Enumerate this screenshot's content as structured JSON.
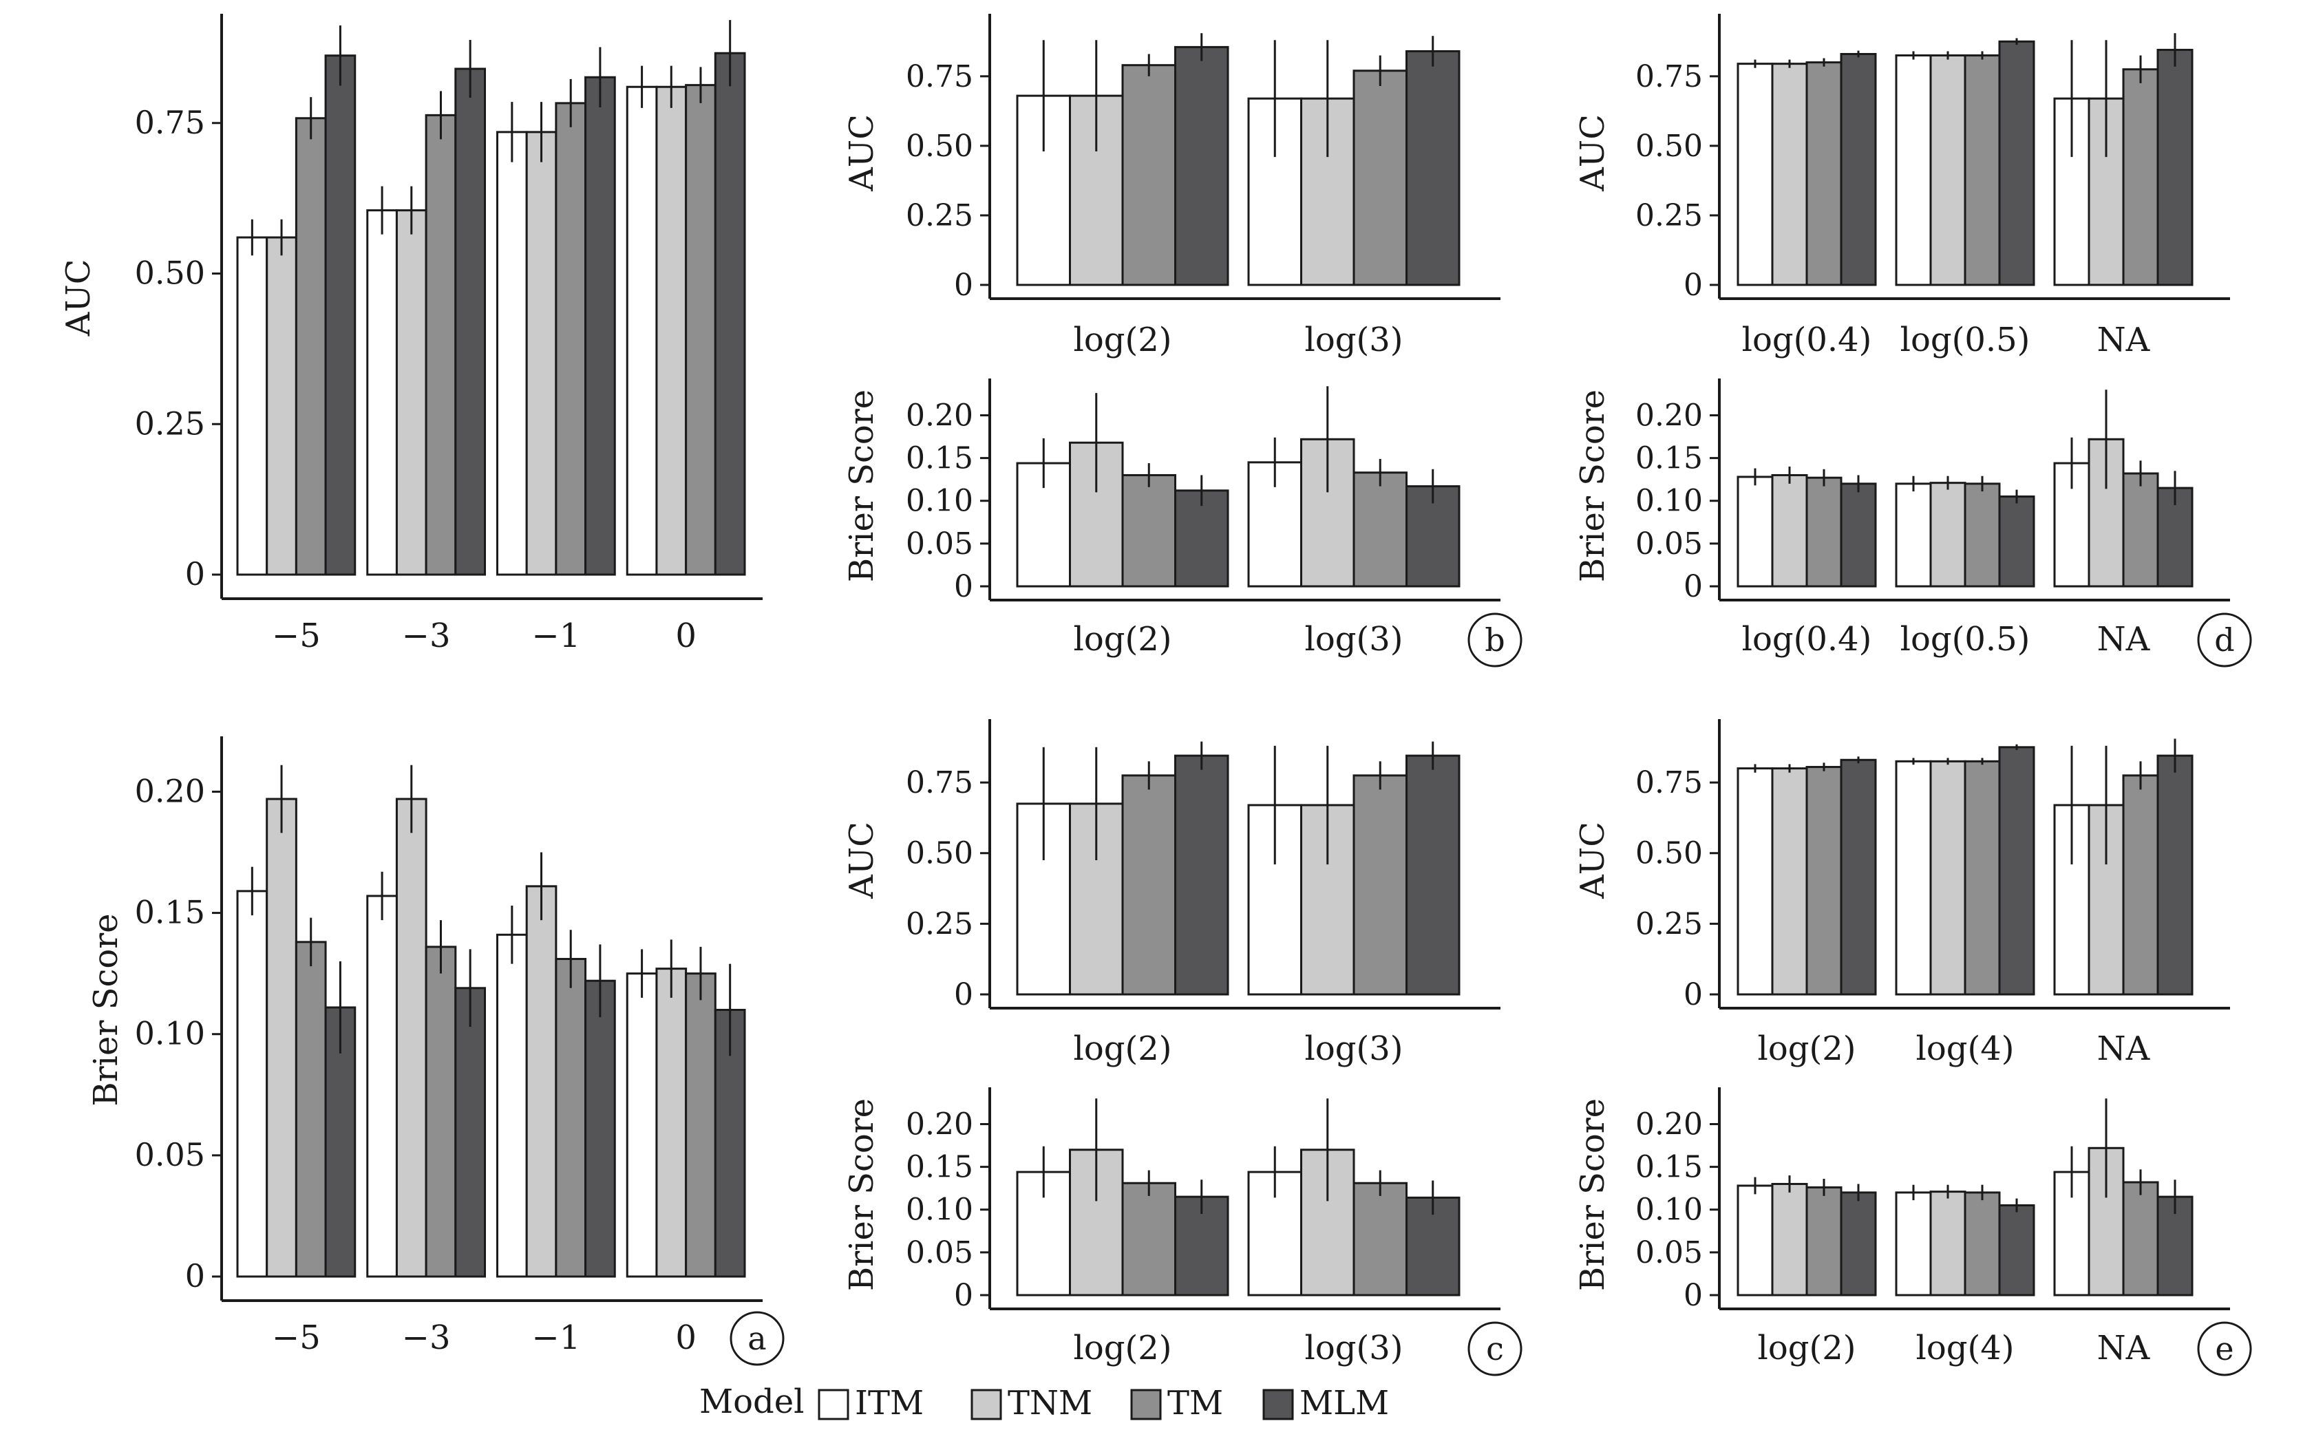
{
  "colors": {
    "ITM": "#ffffff",
    "TNM": "#cbcbcb",
    "TM": "#8f8f8f",
    "MLM": "#555456",
    "stroke": "#1a1a1a"
  },
  "series_order": [
    "ITM",
    "TNM",
    "TM",
    "MLM"
  ],
  "legend": {
    "title": "Model",
    "items": [
      "ITM",
      "TNM",
      "TM",
      "MLM"
    ]
  },
  "chart_data": [
    {
      "id": "a-top",
      "type": "bar",
      "ylabel": "AUC",
      "ylim": [
        0,
        0.92
      ],
      "yticks": [
        0,
        0.25,
        0.5,
        0.75
      ],
      "ytick_labels": [
        "0",
        "0.25",
        "0.50",
        "0.75"
      ],
      "categories": [
        "−5",
        "−3",
        "−1",
        "0"
      ],
      "series": [
        {
          "name": "ITM",
          "values": [
            0.56,
            0.605,
            0.735,
            0.81
          ],
          "err": [
            0.03,
            0.04,
            0.05,
            0.035
          ]
        },
        {
          "name": "TNM",
          "values": [
            0.56,
            0.605,
            0.735,
            0.81
          ],
          "err": [
            0.03,
            0.04,
            0.05,
            0.035
          ]
        },
        {
          "name": "TM",
          "values": [
            0.758,
            0.763,
            0.783,
            0.813
          ],
          "err": [
            0.035,
            0.04,
            0.04,
            0.03
          ]
        },
        {
          "name": "MLM",
          "values": [
            0.862,
            0.84,
            0.826,
            0.866
          ],
          "err": [
            0.05,
            0.048,
            0.05,
            0.055
          ]
        }
      ]
    },
    {
      "id": "a-bottom",
      "type": "bar",
      "ylabel": "Brier  Score",
      "ylim": [
        0,
        0.22
      ],
      "yticks": [
        0,
        0.05,
        0.1,
        0.15,
        0.2
      ],
      "ytick_labels": [
        "0",
        "0.05",
        "0.10",
        "0.15",
        "0.20"
      ],
      "categories": [
        "−5",
        "−3",
        "−1",
        "0"
      ],
      "panel_label": "a",
      "series": [
        {
          "name": "ITM",
          "values": [
            0.159,
            0.157,
            0.141,
            0.125
          ],
          "err": [
            0.01,
            0.01,
            0.012,
            0.01
          ]
        },
        {
          "name": "TNM",
          "values": [
            0.197,
            0.197,
            0.161,
            0.127
          ],
          "err": [
            0.014,
            0.014,
            0.014,
            0.012
          ]
        },
        {
          "name": "TM",
          "values": [
            0.138,
            0.136,
            0.131,
            0.125
          ],
          "err": [
            0.01,
            0.011,
            0.012,
            0.011
          ]
        },
        {
          "name": "MLM",
          "values": [
            0.111,
            0.119,
            0.122,
            0.11
          ],
          "err": [
            0.019,
            0.016,
            0.015,
            0.019
          ]
        }
      ]
    },
    {
      "id": "b-top",
      "type": "bar",
      "ylabel": "AUC",
      "ylim": [
        0,
        0.95
      ],
      "yticks": [
        0,
        0.25,
        0.5,
        0.75
      ],
      "ytick_labels": [
        "0",
        "0.25",
        "0.50",
        "0.75"
      ],
      "categories": [
        "log(2)",
        "log(3)"
      ],
      "series": [
        {
          "name": "ITM",
          "values": [
            0.68,
            0.67
          ],
          "err": [
            0.2,
            0.21
          ]
        },
        {
          "name": "TNM",
          "values": [
            0.68,
            0.67
          ],
          "err": [
            0.2,
            0.21
          ]
        },
        {
          "name": "TM",
          "values": [
            0.79,
            0.77
          ],
          "err": [
            0.04,
            0.055
          ]
        },
        {
          "name": "MLM",
          "values": [
            0.855,
            0.84
          ],
          "err": [
            0.05,
            0.055
          ]
        }
      ]
    },
    {
      "id": "b-bottom",
      "type": "bar",
      "ylabel": "Brier  Score",
      "ylim": [
        0,
        0.235
      ],
      "yticks": [
        0,
        0.05,
        0.1,
        0.15,
        0.2
      ],
      "ytick_labels": [
        "0",
        "0.05",
        "0.10",
        "0.15",
        "0.20"
      ],
      "categories": [
        "log(2)",
        "log(3)"
      ],
      "panel_label": "b",
      "series": [
        {
          "name": "ITM",
          "values": [
            0.144,
            0.145
          ],
          "err": [
            0.029,
            0.029
          ]
        },
        {
          "name": "TNM",
          "values": [
            0.168,
            0.172
          ],
          "err": [
            0.058,
            0.062
          ]
        },
        {
          "name": "TM",
          "values": [
            0.13,
            0.133
          ],
          "err": [
            0.014,
            0.016
          ]
        },
        {
          "name": "MLM",
          "values": [
            0.112,
            0.117
          ],
          "err": [
            0.018,
            0.02
          ]
        }
      ]
    },
    {
      "id": "c-top",
      "type": "bar",
      "ylabel": "AUC",
      "ylim": [
        0,
        0.95
      ],
      "yticks": [
        0,
        0.25,
        0.5,
        0.75
      ],
      "ytick_labels": [
        "0",
        "0.25",
        "0.50",
        "0.75"
      ],
      "categories": [
        "log(2)",
        "log(3)"
      ],
      "series": [
        {
          "name": "ITM",
          "values": [
            0.675,
            0.67
          ],
          "err": [
            0.2,
            0.21
          ]
        },
        {
          "name": "TNM",
          "values": [
            0.675,
            0.67
          ],
          "err": [
            0.2,
            0.21
          ]
        },
        {
          "name": "TM",
          "values": [
            0.775,
            0.775
          ],
          "err": [
            0.05,
            0.05
          ]
        },
        {
          "name": "MLM",
          "values": [
            0.845,
            0.845
          ],
          "err": [
            0.05,
            0.05
          ]
        }
      ]
    },
    {
      "id": "c-bottom",
      "type": "bar",
      "ylabel": "Brier  Score",
      "ylim": [
        0,
        0.235
      ],
      "yticks": [
        0,
        0.05,
        0.1,
        0.15,
        0.2
      ],
      "ytick_labels": [
        "0",
        "0.05",
        "0.10",
        "0.15",
        "0.20"
      ],
      "categories": [
        "log(2)",
        "log(3)"
      ],
      "panel_label": "c",
      "series": [
        {
          "name": "ITM",
          "values": [
            0.144,
            0.144
          ],
          "err": [
            0.03,
            0.03
          ]
        },
        {
          "name": "TNM",
          "values": [
            0.17,
            0.17
          ],
          "err": [
            0.06,
            0.06
          ]
        },
        {
          "name": "TM",
          "values": [
            0.131,
            0.131
          ],
          "err": [
            0.015,
            0.015
          ]
        },
        {
          "name": "MLM",
          "values": [
            0.115,
            0.114
          ],
          "err": [
            0.02,
            0.02
          ]
        }
      ]
    },
    {
      "id": "d-top",
      "type": "bar",
      "ylabel": "AUC",
      "ylim": [
        0,
        0.95
      ],
      "yticks": [
        0,
        0.25,
        0.5,
        0.75
      ],
      "ytick_labels": [
        "0",
        "0.25",
        "0.50",
        "0.75"
      ],
      "categories": [
        "log(0.4)",
        "log(0.5)",
        "NA"
      ],
      "series": [
        {
          "name": "ITM",
          "values": [
            0.795,
            0.825,
            0.67
          ],
          "err": [
            0.015,
            0.015,
            0.21
          ]
        },
        {
          "name": "TNM",
          "values": [
            0.795,
            0.825,
            0.67
          ],
          "err": [
            0.015,
            0.015,
            0.21
          ]
        },
        {
          "name": "TM",
          "values": [
            0.8,
            0.825,
            0.775
          ],
          "err": [
            0.015,
            0.015,
            0.05
          ]
        },
        {
          "name": "MLM",
          "values": [
            0.83,
            0.875,
            0.845
          ],
          "err": [
            0.012,
            0.012,
            0.06
          ]
        }
      ]
    },
    {
      "id": "d-bottom",
      "type": "bar",
      "ylabel": "Brier  Score",
      "ylim": [
        0,
        0.235
      ],
      "yticks": [
        0,
        0.05,
        0.1,
        0.15,
        0.2
      ],
      "ytick_labels": [
        "0",
        "0.05",
        "0.10",
        "0.15",
        "0.20"
      ],
      "categories": [
        "log(0.4)",
        "log(0.5)",
        "NA"
      ],
      "panel_label": "d",
      "series": [
        {
          "name": "ITM",
          "values": [
            0.128,
            0.12,
            0.144
          ],
          "err": [
            0.01,
            0.009,
            0.03
          ]
        },
        {
          "name": "TNM",
          "values": [
            0.13,
            0.121,
            0.172
          ],
          "err": [
            0.01,
            0.008,
            0.058
          ]
        },
        {
          "name": "TM",
          "values": [
            0.127,
            0.12,
            0.132
          ],
          "err": [
            0.01,
            0.009,
            0.015
          ]
        },
        {
          "name": "MLM",
          "values": [
            0.12,
            0.105,
            0.115
          ],
          "err": [
            0.01,
            0.008,
            0.02
          ]
        }
      ]
    },
    {
      "id": "e-top",
      "type": "bar",
      "ylabel": "AUC",
      "ylim": [
        0,
        0.95
      ],
      "yticks": [
        0,
        0.25,
        0.5,
        0.75
      ],
      "ytick_labels": [
        "0",
        "0.25",
        "0.50",
        "0.75"
      ],
      "categories": [
        "log(2)",
        "log(4)",
        "NA"
      ],
      "series": [
        {
          "name": "ITM",
          "values": [
            0.8,
            0.825,
            0.67
          ],
          "err": [
            0.015,
            0.012,
            0.21
          ]
        },
        {
          "name": "TNM",
          "values": [
            0.8,
            0.825,
            0.67
          ],
          "err": [
            0.015,
            0.012,
            0.21
          ]
        },
        {
          "name": "TM",
          "values": [
            0.805,
            0.825,
            0.775
          ],
          "err": [
            0.015,
            0.012,
            0.05
          ]
        },
        {
          "name": "MLM",
          "values": [
            0.83,
            0.875,
            0.845
          ],
          "err": [
            0.012,
            0.01,
            0.06
          ]
        }
      ]
    },
    {
      "id": "e-bottom",
      "type": "bar",
      "ylabel": "Brier  Score",
      "ylim": [
        0,
        0.235
      ],
      "yticks": [
        0,
        0.05,
        0.1,
        0.15,
        0.2
      ],
      "ytick_labels": [
        "0",
        "0.05",
        "0.10",
        "0.15",
        "0.20"
      ],
      "categories": [
        "log(2)",
        "log(4)",
        "NA"
      ],
      "panel_label": "e",
      "series": [
        {
          "name": "ITM",
          "values": [
            0.128,
            0.12,
            0.144
          ],
          "err": [
            0.01,
            0.009,
            0.03
          ]
        },
        {
          "name": "TNM",
          "values": [
            0.13,
            0.121,
            0.172
          ],
          "err": [
            0.01,
            0.008,
            0.058
          ]
        },
        {
          "name": "TM",
          "values": [
            0.126,
            0.12,
            0.132
          ],
          "err": [
            0.01,
            0.009,
            0.015
          ]
        },
        {
          "name": "MLM",
          "values": [
            0.12,
            0.105,
            0.115
          ],
          "err": [
            0.01,
            0.008,
            0.02
          ]
        }
      ]
    }
  ]
}
